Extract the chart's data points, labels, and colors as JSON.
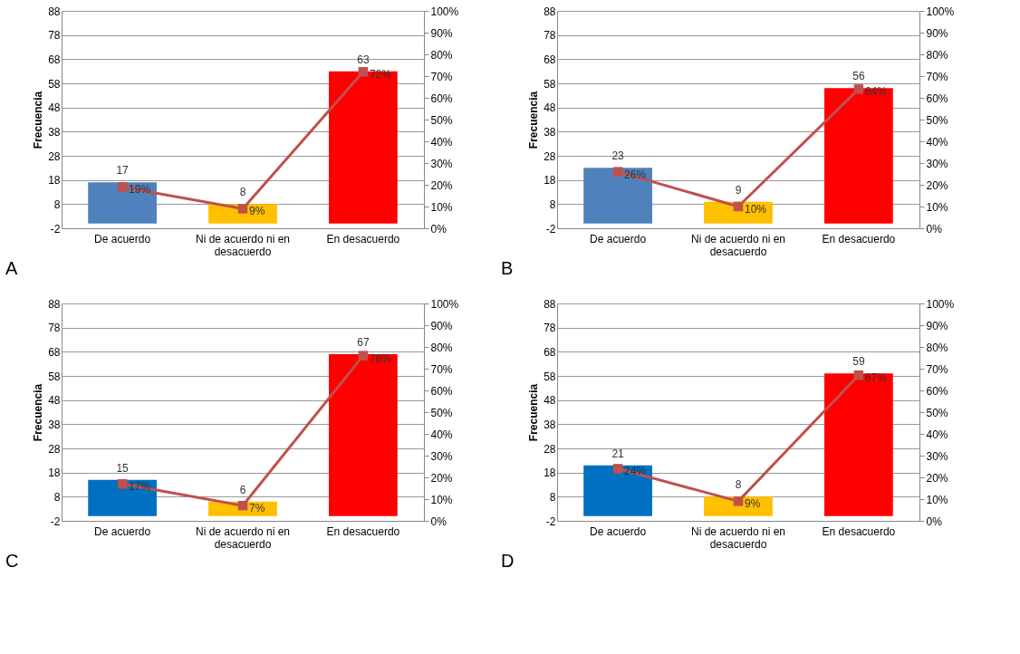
{
  "chart_data": [
    {
      "type": "bar",
      "categories": [
        "De acuerdo",
        "Ni de acuerdo ni en desacuerdo",
        "En desacuerdo"
      ],
      "ylabel": "Frecuencia",
      "ylim": [
        -2,
        88
      ],
      "yticks": [
        -2,
        8,
        18,
        28,
        38,
        48,
        58,
        68,
        78,
        88
      ],
      "y2lim": [
        0,
        100
      ],
      "y2ticks": [
        {
          "value": 0,
          "label": "0%"
        },
        {
          "value": 10,
          "label": "10%"
        },
        {
          "value": 20,
          "label": "20%"
        },
        {
          "value": 30,
          "label": "30%"
        },
        {
          "value": 40,
          "label": "40%"
        },
        {
          "value": 50,
          "label": "50%"
        },
        {
          "value": 60,
          "label": "60%"
        },
        {
          "value": 70,
          "label": "70%"
        },
        {
          "value": 80,
          "label": "80%"
        },
        {
          "value": 90,
          "label": "90%"
        },
        {
          "value": 100,
          "label": "100%"
        }
      ],
      "grid": "y",
      "marker": "square",
      "annotations": [
        "A"
      ],
      "series": [
        {
          "colors": [
            "#4f81bd",
            "#ffc000",
            "#ff0000"
          ],
          "values": [
            17,
            8,
            63
          ],
          "value_labels": [
            "17",
            "8",
            "63"
          ]
        },
        {
          "type": "line",
          "axis": "y2",
          "color": "#c0504d",
          "values": [
            19,
            9,
            72
          ],
          "value_labels": [
            "19%",
            "9%",
            "72%"
          ]
        }
      ]
    },
    {
      "type": "bar",
      "categories": [
        "De acuerdo",
        "Ni de acuerdo ni en desacuerdo",
        "En desacuerdo"
      ],
      "ylabel": "Frecuencia",
      "ylim": [
        -2,
        88
      ],
      "yticks": [
        -2,
        8,
        18,
        28,
        38,
        48,
        58,
        68,
        78,
        88
      ],
      "y2lim": [
        0,
        100
      ],
      "y2ticks": [
        {
          "value": 0,
          "label": "0%"
        },
        {
          "value": 10,
          "label": "10%"
        },
        {
          "value": 20,
          "label": "20%"
        },
        {
          "value": 30,
          "label": "30%"
        },
        {
          "value": 40,
          "label": "40%"
        },
        {
          "value": 50,
          "label": "50%"
        },
        {
          "value": 60,
          "label": "60%"
        },
        {
          "value": 70,
          "label": "70%"
        },
        {
          "value": 80,
          "label": "80%"
        },
        {
          "value": 90,
          "label": "90%"
        },
        {
          "value": 100,
          "label": "100%"
        }
      ],
      "grid": "y",
      "marker": "square",
      "annotations": [
        "B"
      ],
      "series": [
        {
          "colors": [
            "#4f81bd",
            "#ffc000",
            "#ff0000"
          ],
          "values": [
            23,
            9,
            56
          ],
          "value_labels": [
            "23",
            "9",
            "56"
          ]
        },
        {
          "type": "line",
          "axis": "y2",
          "color": "#c0504d",
          "values": [
            26,
            10,
            64
          ],
          "value_labels": [
            "26%",
            "10%",
            "64%"
          ]
        }
      ]
    },
    {
      "type": "bar",
      "categories": [
        "De acuerdo",
        "Ni de acuerdo ni en desacuerdo",
        "En desacuerdo"
      ],
      "ylabel": "Frecuencia",
      "ylim": [
        -2,
        88
      ],
      "yticks": [
        -2,
        8,
        18,
        28,
        38,
        48,
        58,
        68,
        78,
        88
      ],
      "y2lim": [
        0,
        100
      ],
      "y2ticks": [
        {
          "value": 0,
          "label": "0%"
        },
        {
          "value": 10,
          "label": "10%"
        },
        {
          "value": 20,
          "label": "20%"
        },
        {
          "value": 30,
          "label": "30%"
        },
        {
          "value": 40,
          "label": "40%"
        },
        {
          "value": 50,
          "label": "50%"
        },
        {
          "value": 60,
          "label": "60%"
        },
        {
          "value": 70,
          "label": "70%"
        },
        {
          "value": 80,
          "label": "80%"
        },
        {
          "value": 90,
          "label": "90%"
        },
        {
          "value": 100,
          "label": "100%"
        }
      ],
      "grid": "y",
      "marker": "square",
      "annotations": [
        "C"
      ],
      "series": [
        {
          "colors": [
            "#0070c0",
            "#ffc000",
            "#ff0000"
          ],
          "values": [
            15,
            6,
            67
          ],
          "value_labels": [
            "15",
            "6",
            "67"
          ]
        },
        {
          "type": "line",
          "axis": "y2",
          "color": "#c0504d",
          "values": [
            17,
            7,
            76
          ],
          "value_labels": [
            "17%",
            "7%",
            "76%"
          ]
        }
      ]
    },
    {
      "type": "bar",
      "categories": [
        "De acuerdo",
        "Ni de acuerdo ni en desacuerdo",
        "En desacuerdo"
      ],
      "ylabel": "Frecuencia",
      "ylim": [
        -2,
        88
      ],
      "yticks": [
        -2,
        8,
        18,
        28,
        38,
        48,
        58,
        68,
        78,
        88
      ],
      "y2lim": [
        0,
        100
      ],
      "y2ticks": [
        {
          "value": 0,
          "label": "0%"
        },
        {
          "value": 10,
          "label": "10%"
        },
        {
          "value": 20,
          "label": "20%"
        },
        {
          "value": 30,
          "label": "30%"
        },
        {
          "value": 40,
          "label": "40%"
        },
        {
          "value": 50,
          "label": "50%"
        },
        {
          "value": 60,
          "label": "60%"
        },
        {
          "value": 70,
          "label": "70%"
        },
        {
          "value": 80,
          "label": "80%"
        },
        {
          "value": 90,
          "label": "90%"
        },
        {
          "value": 100,
          "label": "100%"
        }
      ],
      "grid": "y",
      "marker": "square",
      "annotations": [
        "D"
      ],
      "series": [
        {
          "colors": [
            "#0070c0",
            "#ffc000",
            "#ff0000"
          ],
          "values": [
            21,
            8,
            59
          ],
          "value_labels": [
            "21",
            "8",
            "59"
          ]
        },
        {
          "type": "line",
          "axis": "y2",
          "color": "#c0504d",
          "values": [
            24,
            9,
            67
          ],
          "value_labels": [
            "24%",
            "9%",
            "67%"
          ]
        }
      ]
    }
  ]
}
